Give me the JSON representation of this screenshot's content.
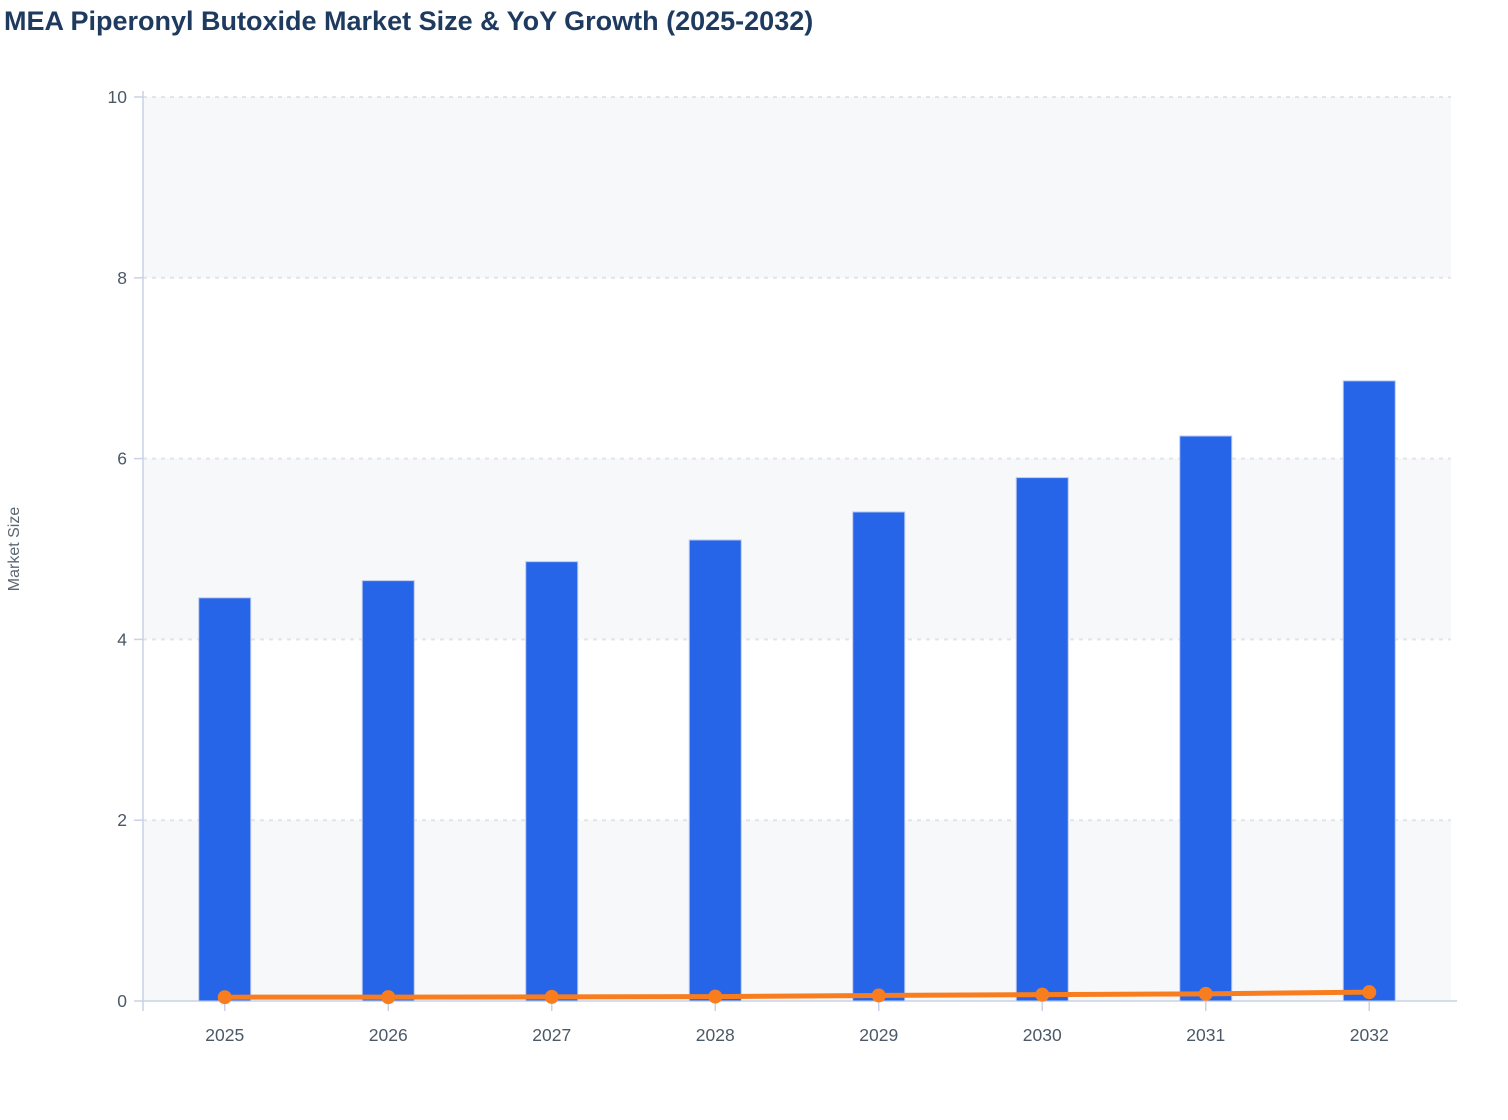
{
  "page": {
    "title": "MEA Piperonyl Butoxide Market Size & YoY Growth (2025-2032)"
  },
  "chart_data": {
    "type": "bar",
    "title": "MEA Piperonyl Butoxide Market Size & YoY Growth (2025-2032)",
    "categories": [
      "2025",
      "2026",
      "2027",
      "2028",
      "2029",
      "2030",
      "2031",
      "2032"
    ],
    "series": [
      {
        "name": "Market Size",
        "type": "bar",
        "values": [
          4.46,
          4.65,
          4.86,
          5.1,
          5.41,
          5.79,
          6.25,
          6.86
        ],
        "color": "#2765e8"
      },
      {
        "name": "YoY Growth",
        "type": "line",
        "values": [
          0.042,
          0.043,
          0.045,
          0.049,
          0.061,
          0.07,
          0.079,
          0.098
        ],
        "color": "#f87d1e"
      }
    ],
    "xlabel": "",
    "ylabel": "Market Size",
    "ylim": [
      0,
      10
    ],
    "yticks": [
      0,
      2,
      4,
      6,
      8,
      10
    ],
    "grid": "horizontal-dashed",
    "alternating_bands": true,
    "legend": "none",
    "colors": {
      "bar_fill": "#2765e8",
      "bar_border": "#bdcaf0",
      "line": "#f87d1e",
      "band_fill": "#f7f8fa",
      "gridline": "#e3e4e8",
      "axis_line": "#c9d2e6",
      "tick_label": "#4b5866",
      "axis_title": "#5c6673",
      "title": "#1e3a5f"
    }
  }
}
